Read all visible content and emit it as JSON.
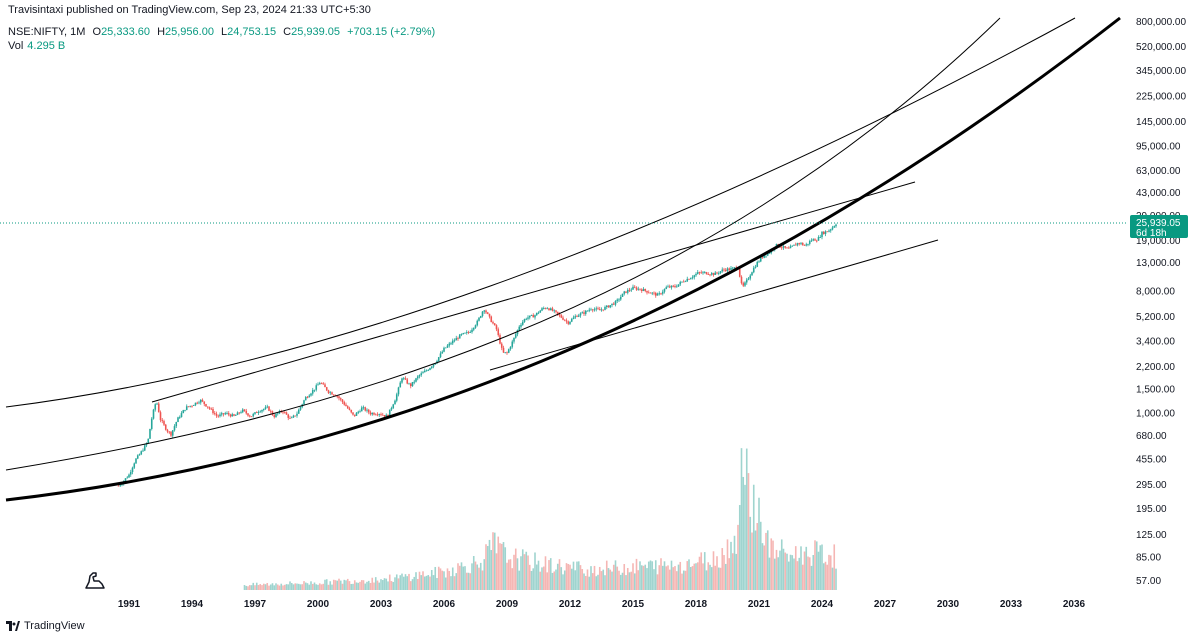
{
  "header": {
    "published": "Travisintaxi published on TradingView.com, Sep 23, 2024 21:33 UTC+5:30"
  },
  "legend": {
    "symbol": "NSE:NIFTY, 1M",
    "open_key": "O",
    "open": "25,333.60",
    "high_key": "H",
    "high": "25,956.00",
    "low_key": "L",
    "low": "24,753.15",
    "close_key": "C",
    "close": "25,939.05",
    "change": "+703.15 (+2.79%)",
    "vol_key": "Vol",
    "vol": "4.295 B"
  },
  "price_tag": {
    "value": "25,939.05",
    "countdown": "6d 18h",
    "color": "#089981"
  },
  "footer": {
    "brand": "TradingView"
  },
  "colors": {
    "up": "#26a69a",
    "down": "#ef5350",
    "vol_up": "#9fd4cf",
    "vol_down": "#f5b6b4",
    "line": "#000000",
    "dotted": "#089981"
  },
  "chart_data": {
    "type": "candlestick",
    "timeframe": "1M",
    "y_scale": "log",
    "y_ticks": [
      "800,000.00",
      "520,000.00",
      "345,000.00",
      "225,000.00",
      "145,000.00",
      "95,000.00",
      "63,000.00",
      "43,000.00",
      "29,000.00",
      "19,000.00",
      "13,000.00",
      "8,000.00",
      "5,200.00",
      "3,400.00",
      "2,200.00",
      "1,500.00",
      "1,000.00",
      "680.00",
      "455.00",
      "295.00",
      "195.00",
      "125.00",
      "85.00",
      "57.00"
    ],
    "y_tick_values": [
      800000,
      520000,
      345000,
      225000,
      145000,
      95000,
      63000,
      43000,
      29000,
      19000,
      13000,
      8000,
      5200,
      3400,
      2200,
      1500,
      1000,
      680,
      455,
      295,
      195,
      125,
      85,
      57
    ],
    "x_ticks": [
      "1991",
      "1994",
      "1997",
      "2000",
      "2003",
      "2006",
      "2009",
      "2012",
      "2015",
      "2018",
      "2021",
      "2024",
      "2027",
      "2030",
      "2033",
      "2036"
    ],
    "x_tick_years": [
      1991,
      1994,
      1997,
      2000,
      2003,
      2006,
      2009,
      2012,
      2015,
      2018,
      2021,
      2024,
      2027,
      2030,
      2033,
      2036
    ],
    "close_path": [
      [
        1990.5,
        290
      ],
      [
        1990.7,
        310
      ],
      [
        1991.0,
        350
      ],
      [
        1991.3,
        450
      ],
      [
        1991.6,
        520
      ],
      [
        1991.9,
        620
      ],
      [
        1992.1,
        950
      ],
      [
        1992.3,
        1250
      ],
      [
        1992.5,
        900
      ],
      [
        1992.8,
        750
      ],
      [
        1993.0,
        700
      ],
      [
        1993.3,
        900
      ],
      [
        1993.7,
        1100
      ],
      [
        1994.0,
        1150
      ],
      [
        1994.4,
        1250
      ],
      [
        1994.8,
        1100
      ],
      [
        1995.2,
        950
      ],
      [
        1995.6,
        1000
      ],
      [
        1996.0,
        950
      ],
      [
        1996.4,
        1050
      ],
      [
        1996.8,
        950
      ],
      [
        1997.2,
        1050
      ],
      [
        1997.6,
        1100
      ],
      [
        1997.9,
        950
      ],
      [
        1998.3,
        1050
      ],
      [
        1998.7,
        900
      ],
      [
        1999.0,
        1000
      ],
      [
        1999.4,
        1300
      ],
      [
        1999.8,
        1500
      ],
      [
        2000.1,
        1700
      ],
      [
        2000.5,
        1450
      ],
      [
        2000.9,
        1350
      ],
      [
        2001.3,
        1150
      ],
      [
        2001.7,
        950
      ],
      [
        2002.1,
        1100
      ],
      [
        2002.5,
        1000
      ],
      [
        2002.9,
        1000
      ],
      [
        2003.3,
        950
      ],
      [
        2003.7,
        1300
      ],
      [
        2004.0,
        1850
      ],
      [
        2004.4,
        1600
      ],
      [
        2004.8,
        1900
      ],
      [
        2005.2,
        2100
      ],
      [
        2005.6,
        2400
      ],
      [
        2006.0,
        3000
      ],
      [
        2006.4,
        3400
      ],
      [
        2006.8,
        3800
      ],
      [
        2007.2,
        4000
      ],
      [
        2007.6,
        4800
      ],
      [
        2007.9,
        6000
      ],
      [
        2008.2,
        5000
      ],
      [
        2008.5,
        4200
      ],
      [
        2008.8,
        2800
      ],
      [
        2009.0,
        2800
      ],
      [
        2009.3,
        3500
      ],
      [
        2009.6,
        4500
      ],
      [
        2009.9,
        5100
      ],
      [
        2010.3,
        5300
      ],
      [
        2010.7,
        6000
      ],
      [
        2010.9,
        6100
      ],
      [
        2011.3,
        5600
      ],
      [
        2011.7,
        5000
      ],
      [
        2011.9,
        4700
      ],
      [
        2012.3,
        5300
      ],
      [
        2012.7,
        5600
      ],
      [
        2013.0,
        6000
      ],
      [
        2013.4,
        5800
      ],
      [
        2013.8,
        6200
      ],
      [
        2014.2,
        6700
      ],
      [
        2014.6,
        7900
      ],
      [
        2015.0,
        8500
      ],
      [
        2015.4,
        8300
      ],
      [
        2015.8,
        7900
      ],
      [
        2016.2,
        7500
      ],
      [
        2016.6,
        8600
      ],
      [
        2017.0,
        8700
      ],
      [
        2017.4,
        9600
      ],
      [
        2017.8,
        10300
      ],
      [
        2018.1,
        11000
      ],
      [
        2018.5,
        11000
      ],
      [
        2018.9,
        10800
      ],
      [
        2019.3,
        11600
      ],
      [
        2019.7,
        11800
      ],
      [
        2020.0,
        12100
      ],
      [
        2020.2,
        8500
      ],
      [
        2020.4,
        9500
      ],
      [
        2020.7,
        11600
      ],
      [
        2020.9,
        13000
      ],
      [
        2021.2,
        14700
      ],
      [
        2021.5,
        15700
      ],
      [
        2021.8,
        17700
      ],
      [
        2022.0,
        17300
      ],
      [
        2022.4,
        16500
      ],
      [
        2022.7,
        17700
      ],
      [
        2022.9,
        18500
      ],
      [
        2023.2,
        17500
      ],
      [
        2023.5,
        19300
      ],
      [
        2023.8,
        19600
      ],
      [
        2024.0,
        21700
      ],
      [
        2024.3,
        22600
      ],
      [
        2024.5,
        24000
      ],
      [
        2024.7,
        25939
      ]
    ],
    "volume_profile": [
      [
        1996.5,
        6
      ],
      [
        2000.0,
        9
      ],
      [
        2003.5,
        14
      ],
      [
        2006.0,
        22
      ],
      [
        2007.8,
        35
      ],
      [
        2008.4,
        55
      ],
      [
        2009.0,
        40
      ],
      [
        2011.0,
        30
      ],
      [
        2013.0,
        25
      ],
      [
        2015.0,
        28
      ],
      [
        2017.0,
        30
      ],
      [
        2019.0,
        38
      ],
      [
        2019.9,
        60
      ],
      [
        2020.2,
        160
      ],
      [
        2020.5,
        120
      ],
      [
        2021.0,
        90
      ],
      [
        2021.5,
        50
      ],
      [
        2022.5,
        42
      ],
      [
        2023.5,
        45
      ],
      [
        2024.7,
        40
      ]
    ],
    "annotation": "Log-scale curves and trendlines drawn by the author"
  }
}
